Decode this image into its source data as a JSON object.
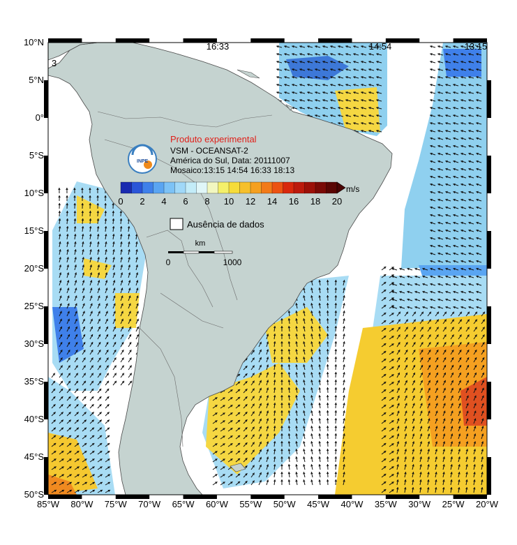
{
  "map": {
    "lon_range": [
      -85,
      -20
    ],
    "lat_range": [
      -50,
      10
    ],
    "lat_ticks": [
      "10°N",
      "5°N",
      "0°",
      "5°S",
      "10°S",
      "15°S",
      "20°S",
      "25°S",
      "30°S",
      "35°S",
      "40°S",
      "45°S",
      "50°S"
    ],
    "lon_ticks": [
      "85°W",
      "80°W",
      "75°W",
      "70°W",
      "65°W",
      "60°W",
      "55°W",
      "50°W",
      "45°W",
      "40°W",
      "35°W",
      "30°W",
      "25°W",
      "20°W"
    ],
    "pass_times": [
      "16:33",
      "14:54",
      "13:15"
    ],
    "corner_label": "3"
  },
  "overlay": {
    "title_red": "Produto experimental",
    "product": "VSM - OCEANSAT-2",
    "region": "América do Sul, Data: 20111007",
    "mosaic": "Mosaico:13:15 14:54 16:33 18:13",
    "logo_text": "INPE"
  },
  "colorbar": {
    "unit": "m/s",
    "ticks": [
      "0",
      "2",
      "4",
      "6",
      "8",
      "10",
      "12",
      "14",
      "16",
      "18",
      "20"
    ],
    "colors": [
      "#1a2bb0",
      "#2a55d8",
      "#3f80ea",
      "#5aa5f2",
      "#7cc2f6",
      "#a0d8f8",
      "#c3ecf8",
      "#e0f6f8",
      "#f2f7c0",
      "#f4f06a",
      "#f6dc3a",
      "#f6c02c",
      "#f5a020",
      "#f27a18",
      "#ec5212",
      "#d8280c",
      "#bc1a0c",
      "#9c1008",
      "#7a0a06",
      "#5a0604"
    ]
  },
  "legend": {
    "no_data": "Ausência de dados",
    "scale_unit": "km",
    "scale_start": "0",
    "scale_end": "1000"
  },
  "colors": {
    "land": "#c5d3d0",
    "ocean_no_data": "#ffffff",
    "coast": "#4a4a4a"
  }
}
